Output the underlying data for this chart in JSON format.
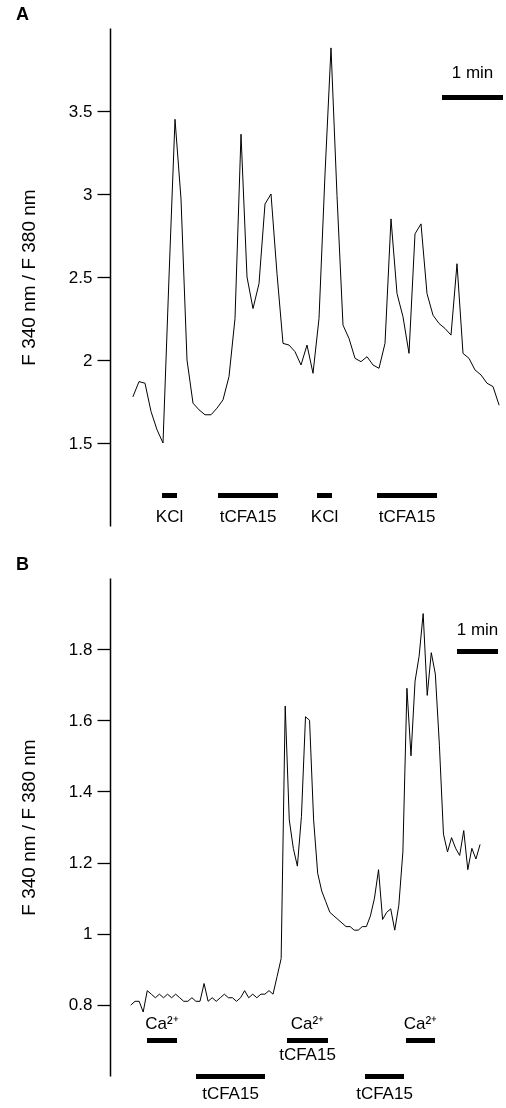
{
  "chart_data": [
    {
      "type": "line",
      "title": "A",
      "ylabel": "F 340 nm / F 380 nm",
      "ylim": [
        1.0,
        4.0
      ],
      "yticks": [
        1.5,
        2,
        2.5,
        3,
        3.5
      ],
      "categories": [
        null,
        null,
        null,
        null,
        null,
        null,
        null,
        null,
        null,
        null,
        null,
        null,
        null,
        null,
        null,
        null,
        null,
        null,
        null,
        null,
        null,
        null,
        null,
        null,
        null,
        null,
        null,
        null,
        null,
        null,
        null,
        null,
        null,
        null,
        null,
        null,
        null,
        null,
        null,
        null,
        null,
        null,
        null,
        null,
        null,
        null,
        null,
        null,
        null,
        null,
        null,
        null,
        null,
        null,
        null,
        null,
        null,
        null,
        null,
        null,
        null,
        null
      ],
      "series": [
        {
          "color": "#000000",
          "values": [
            1.78,
            1.87,
            1.86,
            1.69,
            1.58,
            1.5,
            2.5,
            3.45,
            2.97,
            2.0,
            1.74,
            1.7,
            1.67,
            1.67,
            1.71,
            1.76,
            1.9,
            2.25,
            3.36,
            2.5,
            2.31,
            2.46,
            2.94,
            3.0,
            2.52,
            2.1,
            2.09,
            2.05,
            1.97,
            2.09,
            1.92,
            2.25,
            3.12,
            3.88,
            2.99,
            2.21,
            2.13,
            2.01,
            1.99,
            2.02,
            1.97,
            1.95,
            2.1,
            2.85,
            2.4,
            2.26,
            2.04,
            2.76,
            2.82,
            2.4,
            2.27,
            2.22,
            2.19,
            2.15,
            2.58,
            2.04,
            2.01,
            1.94,
            1.91,
            1.86,
            1.84,
            1.73
          ]
        }
      ],
      "annotations": [
        "KCl",
        "tCFA15",
        "KCl",
        "tCFA15",
        "1 min"
      ]
    },
    {
      "type": "line",
      "title": "B",
      "ylabel": "F 340 nm / F 380 nm",
      "ylim": [
        0.6,
        2.0
      ],
      "yticks": [
        0.8,
        1,
        1.2,
        1.4,
        1.6,
        1.8
      ],
      "categories": [
        null,
        null,
        null,
        null,
        null,
        null,
        null,
        null,
        null,
        null,
        null,
        null,
        null,
        null,
        null,
        null,
        null,
        null,
        null,
        null,
        null,
        null,
        null,
        null,
        null,
        null,
        null,
        null,
        null,
        null,
        null,
        null,
        null,
        null,
        null,
        null,
        null,
        null,
        null,
        null,
        null,
        null,
        null,
        null,
        null,
        null,
        null,
        null,
        null,
        null,
        null,
        null,
        null,
        null,
        null,
        null,
        null,
        null,
        null,
        null,
        null,
        null,
        null,
        null,
        null,
        null,
        null,
        null,
        null,
        null,
        null,
        null,
        null,
        null,
        null,
        null,
        null,
        null,
        null,
        null,
        null,
        null,
        null,
        null,
        null,
        null,
        null
      ],
      "series": [
        {
          "color": "#000000",
          "values": [
            0.8,
            0.81,
            0.81,
            0.78,
            0.84,
            0.83,
            0.82,
            0.83,
            0.82,
            0.83,
            0.82,
            0.83,
            0.82,
            0.81,
            0.81,
            0.82,
            0.81,
            0.81,
            0.86,
            0.81,
            0.82,
            0.81,
            0.82,
            0.83,
            0.82,
            0.82,
            0.81,
            0.82,
            0.84,
            0.82,
            0.83,
            0.82,
            0.83,
            0.83,
            0.84,
            0.83,
            0.88,
            0.93,
            1.64,
            1.32,
            1.24,
            1.19,
            1.33,
            1.61,
            1.6,
            1.32,
            1.17,
            1.12,
            1.09,
            1.06,
            1.05,
            1.04,
            1.03,
            1.02,
            1.02,
            1.01,
            1.01,
            1.02,
            1.02,
            1.05,
            1.1,
            1.18,
            1.04,
            1.06,
            1.07,
            1.01,
            1.08,
            1.23,
            1.69,
            1.5,
            1.71,
            1.78,
            1.9,
            1.67,
            1.79,
            1.73,
            1.53,
            1.28,
            1.23,
            1.27,
            1.24,
            1.22,
            1.29,
            1.18,
            1.24,
            1.21,
            1.25
          ]
        }
      ],
      "annotations": [
        "Ca²⁺",
        "tCFA15",
        "Ca²⁺",
        "tCFA15",
        "tCFA15",
        "Ca²⁺",
        "1 min"
      ]
    }
  ]
}
